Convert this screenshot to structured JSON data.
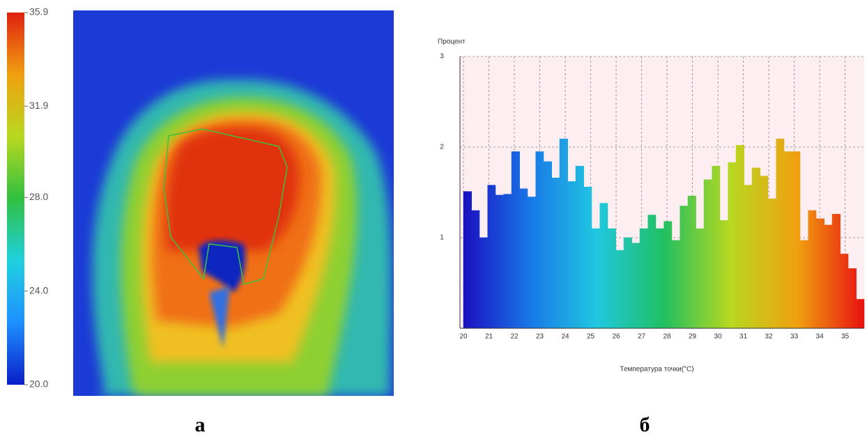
{
  "chart_data": [
    {
      "type": "thermal-image",
      "label": "а",
      "colormap": [
        "#0a1ec8",
        "#1e90ff",
        "#20d0e0",
        "#30c040",
        "#b8d820",
        "#f0a010",
        "#e02010"
      ],
      "ylim": [
        20,
        35.9
      ],
      "yticks": [
        {
          "value": 20,
          "label": "20.0"
        },
        {
          "value": 24,
          "label": "24.0"
        },
        {
          "value": 28,
          "label": "28.0"
        },
        31.9,
        35.9
      ]
    },
    {
      "type": "histogram",
      "label": "б",
      "ylabel": "Процент",
      "xlabel": "Температура точки(°C)",
      "colormap": [
        "#1a10c0",
        "#1878e8",
        "#20c8e0",
        "#20c060",
        "#b8d820",
        "#f0a010",
        "#e81010"
      ],
      "bins": [
        20,
        20.32,
        20.63,
        20.95,
        21.26,
        21.58,
        21.89,
        22.21,
        22.52,
        22.84,
        23.15,
        23.47,
        23.78,
        24.1,
        24.41,
        24.73,
        25.04,
        25.36,
        25.67,
        25.99,
        26.3,
        26.62,
        26.93,
        27.25,
        27.56,
        27.88,
        28.19,
        28.51,
        28.82,
        29.14,
        29.45,
        29.77,
        30.08,
        30.4,
        30.71,
        31.03,
        31.34,
        31.66,
        31.97,
        32.29,
        32.6,
        32.92,
        33.23,
        33.55,
        33.86,
        34.18,
        34.49,
        34.81,
        35.12,
        35.44,
        35.75
      ],
      "values": [
        1.51,
        1.3,
        1.0,
        1.58,
        1.47,
        1.48,
        1.95,
        1.54,
        1.45,
        1.95,
        1.84,
        1.66,
        2.09,
        1.62,
        1.79,
        1.56,
        1.1,
        1.38,
        1.1,
        0.86,
        1.0,
        0.94,
        1.1,
        1.25,
        1.1,
        1.18,
        0.97,
        1.35,
        1.46,
        1.1,
        1.64,
        1.79,
        1.19,
        1.83,
        2.02,
        1.58,
        1.77,
        1.68,
        1.43,
        2.09,
        1.95,
        1.95,
        0.97,
        1.3,
        1.21,
        1.14,
        1.26,
        0.82,
        0.66,
        0.32
      ],
      "xlim": [
        20,
        35.75
      ],
      "ylim": [
        0,
        3
      ],
      "xticks": [
        20,
        21,
        22,
        23,
        24,
        25,
        26,
        27,
        28,
        29,
        30,
        31,
        32,
        33,
        34,
        35
      ],
      "yticks": [
        1,
        2,
        3
      ],
      "grid": true
    }
  ]
}
